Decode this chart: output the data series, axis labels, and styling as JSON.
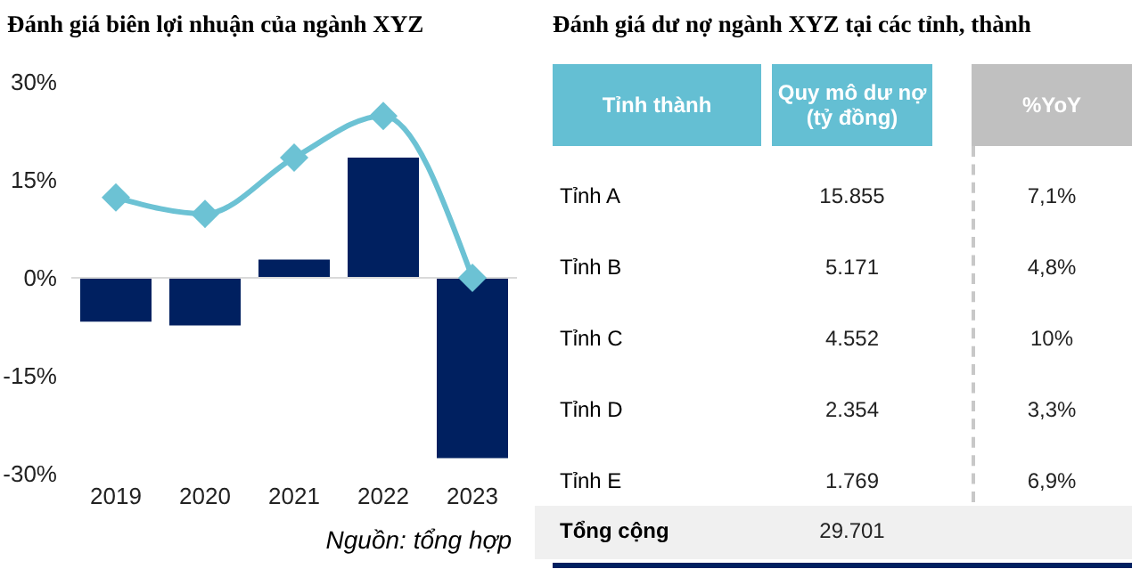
{
  "chart_data": [
    {
      "type": "bar",
      "title": "Đánh giá biên lợi nhuận của ngành XYZ",
      "categories": [
        "2019",
        "2020",
        "2021",
        "2022",
        "2023"
      ],
      "series": [
        {
          "type": "bar",
          "color": "#002060",
          "values": [
            -6.7,
            -7.3,
            2.8,
            18.4,
            -27.6
          ]
        },
        {
          "type": "line",
          "color": "#6cc2d4",
          "values": [
            12.3,
            9.8,
            18.4,
            24.8,
            0
          ],
          "marker": "diamond"
        }
      ],
      "ylim": [
        -30,
        30
      ],
      "yticks": [
        {
          "value": 30,
          "label": "30%"
        },
        {
          "value": 15,
          "label": "15%"
        },
        {
          "value": 0,
          "label": "0%"
        },
        {
          "value": -15,
          "label": "-15%"
        },
        {
          "value": -30,
          "label": "-30%"
        }
      ],
      "ref_lines": [
        {
          "axis": "y",
          "value": 0,
          "color": "#d9d9d9"
        }
      ],
      "grid": false,
      "legend": false,
      "annotations": [
        "Nguồn: tổng hợp"
      ]
    },
    {
      "type": "other",
      "title": "Đánh giá dư nợ ngành XYZ tại các tỉnh, thành",
      "xlabel": "Tỉnh thành",
      "categories": [
        "Tỉnh A",
        "Tỉnh B",
        "Tỉnh C",
        "Tỉnh D",
        "Tỉnh E",
        "Tổng cộng"
      ],
      "series": [
        {
          "name": "Quy mô dư nợ (tỷ đồng)",
          "values": [
            15855,
            5171,
            4552,
            2354,
            1769,
            29701
          ],
          "value_labels": [
            "15.855",
            "5.171",
            "4.552",
            "2.354",
            "1.769",
            "29.701"
          ]
        },
        {
          "name": "%YoY",
          "values": [
            7.1,
            4.8,
            10,
            3.3,
            6.9,
            null
          ],
          "value_labels": [
            "7,1%",
            "4,8%",
            "10%",
            "3,3%",
            "6,9%",
            null
          ]
        }
      ]
    }
  ]
}
